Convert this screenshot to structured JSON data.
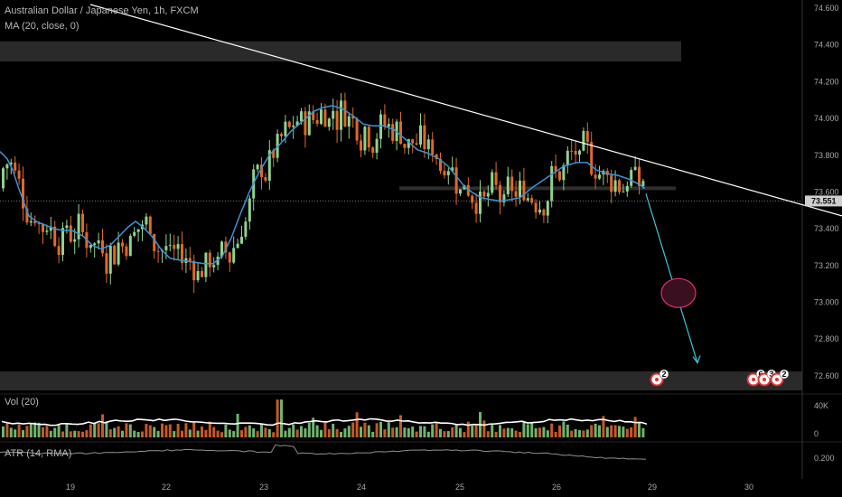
{
  "header": {
    "symbol_title": "Australian Dollar / Japanese Yen, 1h, FXCM",
    "ma_label": "MA (20, close, 0)",
    "vol_label": "Vol (20)",
    "atr_label": "ATR (14, RMA)"
  },
  "current_price_tag": "73.551",
  "colors": {
    "background": "#000000",
    "up": "#8fd28f",
    "down": "#e0692a",
    "ma": "#3b93d6",
    "trendline": "#ffffff",
    "projection": "#3cc8d8",
    "target_circle": "#e03070"
  },
  "event_markers": [
    {
      "badge": "2"
    },
    {
      "badge": "6"
    },
    {
      "badge": "3"
    },
    {
      "badge": "2"
    }
  ],
  "chart_data": {
    "type": "candlestick",
    "title": "Australian Dollar / Japanese Yen, 1h, FXCM",
    "price_axis": {
      "ticks": [
        "74.600",
        "74.400",
        "74.200",
        "74.000",
        "73.800",
        "73.600",
        "73.400",
        "73.200",
        "73.000",
        "72.800",
        "72.600"
      ],
      "ylim": [
        72.55,
        74.62
      ]
    },
    "time_axis": {
      "ticks": [
        "19",
        "22",
        "23",
        "24",
        "25",
        "26",
        "29",
        "30"
      ]
    },
    "volume_axis": {
      "ticks": [
        "40K",
        "0"
      ]
    },
    "atr_axis": {
      "ticks": [
        "0.200"
      ]
    },
    "resistance_zones": [
      [
        74.31,
        74.42
      ],
      [
        72.55,
        72.64
      ]
    ],
    "support_zone_right": [
      73.61,
      73.63
    ],
    "current_price": 73.551,
    "ma_series_name": "MA (20, close, 0)",
    "ma_points": [
      [
        0,
        73.82
      ],
      [
        8,
        73.78
      ],
      [
        14,
        73.72
      ],
      [
        20,
        73.63
      ],
      [
        26,
        73.55
      ],
      [
        32,
        73.47
      ],
      [
        40,
        73.44
      ],
      [
        50,
        73.42
      ],
      [
        60,
        73.4
      ],
      [
        70,
        73.39
      ],
      [
        80,
        73.39
      ],
      [
        92,
        73.36
      ],
      [
        102,
        73.31
      ],
      [
        112,
        73.29
      ],
      [
        122,
        73.31
      ],
      [
        132,
        73.36
      ],
      [
        142,
        73.41
      ],
      [
        150,
        73.44
      ],
      [
        158,
        73.41
      ],
      [
        168,
        73.36
      ],
      [
        178,
        73.29
      ],
      [
        188,
        73.24
      ],
      [
        198,
        73.23
      ],
      [
        212,
        73.22
      ],
      [
        226,
        73.21
      ],
      [
        236,
        73.21
      ],
      [
        246,
        73.25
      ],
      [
        256,
        73.35
      ],
      [
        266,
        73.48
      ],
      [
        276,
        73.6
      ],
      [
        286,
        73.7
      ],
      [
        298,
        73.8
      ],
      [
        310,
        73.86
      ],
      [
        322,
        73.93
      ],
      [
        336,
        73.99
      ],
      [
        348,
        74.04
      ],
      [
        358,
        74.06
      ],
      [
        368,
        74.07
      ],
      [
        380,
        74.05
      ],
      [
        392,
        74.01
      ],
      [
        402,
        73.97
      ],
      [
        412,
        73.96
      ],
      [
        424,
        73.96
      ],
      [
        436,
        73.94
      ],
      [
        448,
        73.89
      ],
      [
        462,
        73.83
      ],
      [
        474,
        73.81
      ],
      [
        486,
        73.78
      ],
      [
        496,
        73.74
      ],
      [
        506,
        73.68
      ],
      [
        514,
        73.63
      ],
      [
        522,
        73.6
      ],
      [
        532,
        73.57
      ],
      [
        542,
        73.56
      ],
      [
        554,
        73.55
      ],
      [
        566,
        73.56
      ],
      [
        576,
        73.57
      ],
      [
        588,
        73.62
      ],
      [
        600,
        73.66
      ],
      [
        612,
        73.7
      ],
      [
        624,
        73.74
      ],
      [
        638,
        73.76
      ],
      [
        650,
        73.76
      ],
      [
        660,
        73.72
      ],
      [
        672,
        73.7
      ],
      [
        684,
        73.69
      ],
      [
        696,
        73.67
      ],
      [
        708,
        73.64
      ],
      [
        714,
        73.62
      ]
    ],
    "trendline": [
      [
        100,
        74.62
      ],
      [
        932,
        73.47
      ]
    ],
    "projection": [
      [
        715,
        73.59
      ],
      [
        772,
        72.67
      ]
    ],
    "target_center": [
      751,
      73.05
    ]
  }
}
